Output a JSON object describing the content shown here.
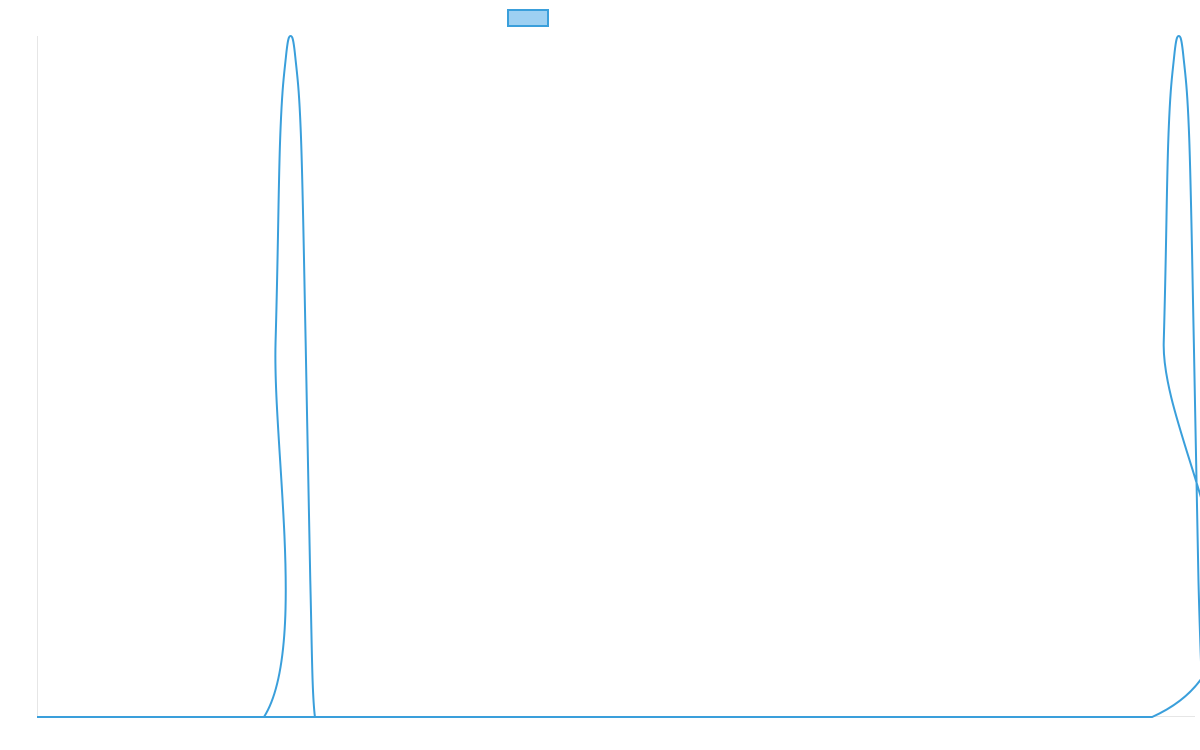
{
  "chart_data": {
    "type": "line",
    "title": "",
    "xlabel": "",
    "ylabel": "",
    "legend_placement": "top-center",
    "grid": false,
    "xlim": [
      0,
      100
    ],
    "ylim": [
      0,
      1
    ],
    "series": [
      {
        "color": "#3a9fdb",
        "fill_color": "#9dd0f2",
        "x": [
          0,
          19.6,
          20.6,
          21.0,
          21.5,
          21.9,
          22.3,
          22.8,
          23.2,
          23.6,
          24.0,
          25.0,
          96.3,
          97.3,
          97.7,
          98.2,
          98.6,
          99.0,
          99.5,
          99.9,
          100.3,
          100.7
        ],
        "y": [
          0,
          0,
          0.55,
          0.85,
          0.97,
          1.0,
          0.97,
          0.85,
          0.55,
          0.2,
          0,
          0,
          0,
          0.55,
          0.85,
          0.97,
          1.0,
          0.97,
          0.85,
          0.55,
          0.2,
          0
        ]
      }
    ]
  }
}
